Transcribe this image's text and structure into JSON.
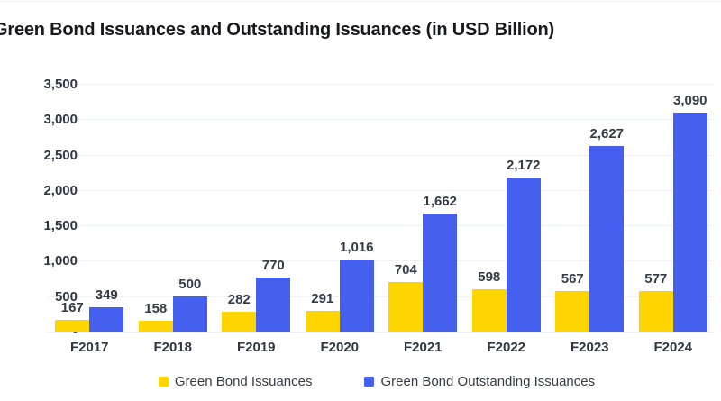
{
  "title": "Green Bond Issuances and Outstanding Issuances (in USD Billion)",
  "chart_data": {
    "type": "bar",
    "title": "Green Bond Issuances and Outstanding Issuances (in USD Billion)",
    "categories": [
      "F2017",
      "F2018",
      "F2019",
      "F2020",
      "F2021",
      "F2022",
      "F2023",
      "F2024"
    ],
    "series": [
      {
        "name": "Green Bond Issuances",
        "color": "#FFD500",
        "values": [
          167,
          158,
          282,
          291,
          704,
          598,
          567,
          577
        ]
      },
      {
        "name": "Green Bond Outstanding Issuances",
        "color": "#4560EE",
        "values": [
          349,
          500,
          770,
          1016,
          1662,
          2172,
          2627,
          3090
        ]
      }
    ],
    "data_labels": [
      [
        "167",
        "158",
        "282",
        "291",
        "704",
        "598",
        "567",
        "577"
      ],
      [
        "349",
        "500",
        "770",
        "1,016",
        "1,662",
        "2,172",
        "2,627",
        "3,090"
      ]
    ],
    "xlabel": "",
    "ylabel": "",
    "ylim": [
      0,
      3500
    ],
    "ytick_step": 500,
    "ytick_labels": [
      "-",
      "500",
      "1,000",
      "1,500",
      "2,000",
      "2,500",
      "3,000",
      "3,500"
    ],
    "grid": true,
    "gridline_color": "#edf2f8",
    "legend_position": "bottom"
  }
}
